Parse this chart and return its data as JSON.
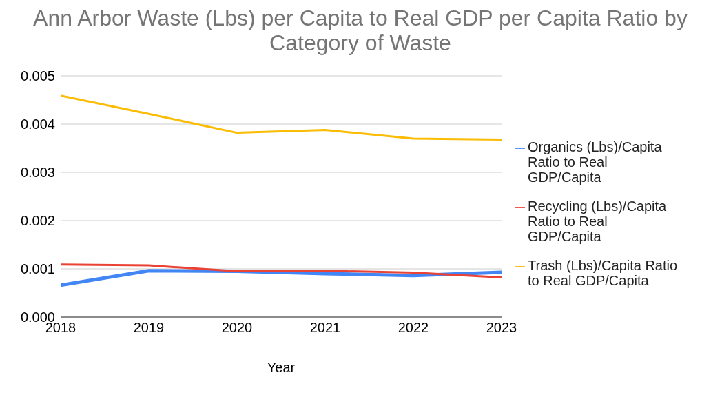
{
  "chart_data": {
    "type": "line",
    "title": "Ann Arbor Waste (Lbs) per Capita to Real GDP per Capita Ratio by Category of Waste",
    "xlabel": "Year",
    "x": [
      2018,
      2019,
      2020,
      2021,
      2022,
      2023
    ],
    "xlim": [
      2018,
      2023
    ],
    "xticks": [
      2018,
      2019,
      2020,
      2021,
      2022,
      2023
    ],
    "ylim": [
      0,
      0.005
    ],
    "yticks": [
      {
        "value": 0,
        "label": "0.000"
      },
      {
        "value": 0.001,
        "label": "0.001"
      },
      {
        "value": 0.002,
        "label": "0.002"
      },
      {
        "value": 0.003,
        "label": "0.003"
      },
      {
        "value": 0.004,
        "label": "0.004"
      },
      {
        "value": 0.005,
        "label": "0.005"
      }
    ],
    "grid": "y",
    "legend": "right",
    "marker": "none",
    "line_style": "solid",
    "series": [
      {
        "name": "Organics (Lbs)/Capita Ratio to Real GDP/Capita",
        "color": "#4285f4",
        "values": [
          0.00066,
          0.00096,
          0.00095,
          0.0009,
          0.00086,
          0.00093
        ]
      },
      {
        "name": "Recycling (Lbs)/Capita Ratio to Real GDP/Capita",
        "color": "#ea4335",
        "values": [
          0.00109,
          0.00107,
          0.00095,
          0.00096,
          0.00092,
          0.00082
        ]
      },
      {
        "name": "Trash (Lbs)/Capita Ratio to Real GDP/Capita",
        "color": "#fbbc04",
        "values": [
          0.00459,
          0.00421,
          0.00382,
          0.00388,
          0.0037,
          0.00368
        ]
      }
    ]
  }
}
